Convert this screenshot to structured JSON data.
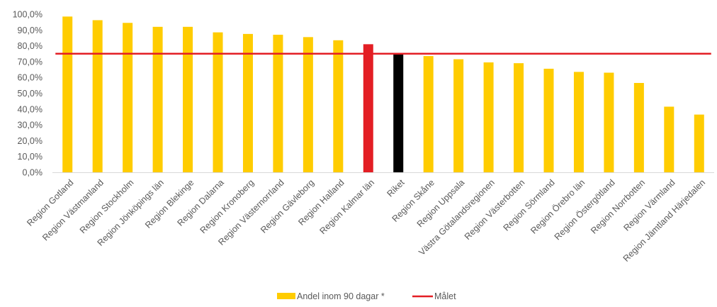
{
  "chart_data": {
    "type": "bar",
    "categories": [
      "Region Gotland",
      "Region Västmanland",
      "Region Stockholm",
      "Region Jönköpings län",
      "Region Blekinge",
      "Region Dalarna",
      "Region Kronoberg",
      "Region Västernorrland",
      "Region Gävleborg",
      "Region Halland",
      "Region Kalmar län",
      "Riket",
      "Region Skåne",
      "Region Uppsala",
      "Västra Götalandsregionen",
      "Region Västerbotten",
      "Region Sörmland",
      "Region Örebro län",
      "Region Östergötland",
      "Region Norrbotten",
      "Region Värmland",
      "Region Jämtland Härjedalen"
    ],
    "series": [
      {
        "name": "Andel inom 90 dagar *",
        "values": [
          98.5,
          96.2,
          94.5,
          92.0,
          92.0,
          88.5,
          87.5,
          87.0,
          85.5,
          83.5,
          81.0,
          74.5,
          73.5,
          71.5,
          69.5,
          69.0,
          65.5,
          63.5,
          63.0,
          56.5,
          41.5,
          36.5
        ],
        "colors": [
          "#FFCC00",
          "#FFCC00",
          "#FFCC00",
          "#FFCC00",
          "#FFCC00",
          "#FFCC00",
          "#FFCC00",
          "#FFCC00",
          "#FFCC00",
          "#FFCC00",
          "#E31E24",
          "#000000",
          "#FFCC00",
          "#FFCC00",
          "#FFCC00",
          "#FFCC00",
          "#FFCC00",
          "#FFCC00",
          "#FFCC00",
          "#FFCC00",
          "#FFCC00",
          "#FFCC00"
        ]
      }
    ],
    "target": {
      "name": "Målet",
      "value": 75,
      "color": "#E31E24"
    },
    "ylim": [
      0,
      100
    ],
    "yticks": [
      "0,0%",
      "10,0%",
      "20,0%",
      "30,0%",
      "40,0%",
      "50,0%",
      "60,0%",
      "70,0%",
      "80,0%",
      "90,0%",
      "100,0%"
    ],
    "ystep": 10,
    "grid": false,
    "legend_position": "bottom",
    "bar_color": "#FFCC00",
    "axis_color": "#D9D9D9",
    "text_color": "#595959"
  }
}
